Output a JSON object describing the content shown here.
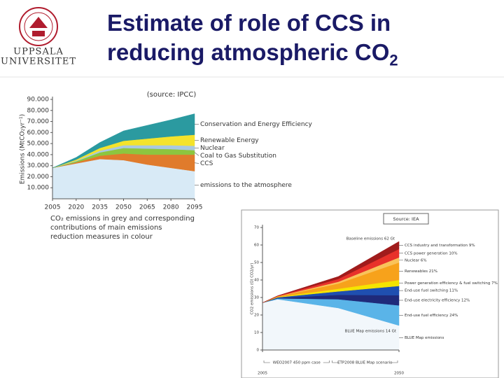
{
  "slide": {
    "title": [
      "Estimate of role of CCS in",
      "reducing atmospheric CO"
    ],
    "title_subscript": "2",
    "logo": [
      "UPPSALA",
      "UNIVERSITET"
    ]
  },
  "chart_data": [
    {
      "type": "stacked_area",
      "source": "(source: IPCC)",
      "y_label": "Emissions (MtCO₂yr⁻¹)",
      "caption": "CO₂ emissions in grey and corresponding contributions of main emissions reduction measures in colour",
      "x": [
        2005,
        2020,
        2035,
        2050,
        2065,
        2080,
        2095
      ],
      "series": [
        {
          "name": "emissions to the atmosphere",
          "color": "#d8eaf6",
          "values": [
            28000,
            32000,
            36000,
            35000,
            31000,
            28000,
            25000
          ]
        },
        {
          "name": "CCS",
          "color": "#e07b2c",
          "values": [
            0,
            1000,
            3000,
            6000,
            9000,
            12000,
            15000
          ]
        },
        {
          "name": "Coal to Gas Substitution",
          "color": "#8dc63f",
          "values": [
            0,
            1000,
            3000,
            5000,
            5500,
            5000,
            4000
          ]
        },
        {
          "name": "Nuclear",
          "color": "#a9c9e0",
          "values": [
            0,
            500,
            1500,
            2500,
            3000,
            3500,
            4000
          ]
        },
        {
          "name": "Renewable Energy",
          "color": "#f4e32c",
          "values": [
            0,
            1000,
            2500,
            4000,
            6000,
            8000,
            10000
          ]
        },
        {
          "name": "Conservation and Energy Efficiency",
          "color": "#2b9aa0",
          "values": [
            0,
            2000,
            5000,
            9000,
            12000,
            15000,
            19000
          ]
        }
      ],
      "xlim": [
        2005,
        2095
      ],
      "xticks": [
        2005,
        2020,
        2035,
        2050,
        2065,
        2080,
        2095
      ],
      "ylim": [
        0,
        90000
      ],
      "yticks": [
        {
          "value": 10000,
          "label": "10.000"
        },
        {
          "value": 20000,
          "label": "20.000"
        },
        {
          "value": 30000,
          "label": "30.000"
        },
        {
          "value": 40000,
          "label": "40.000"
        },
        {
          "value": 50000,
          "label": "50.000"
        },
        {
          "value": 60000,
          "label": "60.000"
        },
        {
          "value": 70000,
          "label": "70.000"
        },
        {
          "value": 80000,
          "label": "80.000"
        },
        {
          "value": 90000,
          "label": "90.000"
        }
      ]
    },
    {
      "type": "stacked_area",
      "source": "Source: IEA",
      "y_label": "CO2 emissions (Gt CO2/yr)",
      "top_label": "Baseline emissions 62 Gt",
      "bottom_label": "BLUE Map emissions 14 Gt",
      "scenarios": [
        "WEO2007 450 ppm case",
        "ETP2008 BLUE Map scenario"
      ],
      "x": [
        2005,
        2010,
        2030,
        2050
      ],
      "series": [
        {
          "name": "BLUE Map emissions",
          "color": "#f2f7fb",
          "values": [
            27,
            29,
            24,
            14
          ]
        },
        {
          "name": "End-use fuel efficiency 24%",
          "color": "#5ab4e8",
          "values": [
            0,
            0.5,
            5,
            11.5
          ]
        },
        {
          "name": "End-use electricity efficiency 12%",
          "color": "#1f2a7a",
          "values": [
            0,
            0.3,
            2.5,
            5.8
          ]
        },
        {
          "name": "End-use fuel switching 11%",
          "color": "#1f4fb0",
          "values": [
            0,
            0.3,
            2,
            5.3
          ]
        },
        {
          "name": "Power generation efficiency & fuel switching 7%",
          "color": "#f5e400",
          "values": [
            0,
            0.2,
            1.5,
            3.4
          ]
        },
        {
          "name": "Renewables 21%",
          "color": "#f7a21b",
          "values": [
            0,
            0.3,
            3,
            10
          ]
        },
        {
          "name": "Nuclear 6%",
          "color": "#f9c35a",
          "values": [
            0,
            0.1,
            1,
            2.9
          ]
        },
        {
          "name": "CCS power generation 10%",
          "color": "#e8312a",
          "values": [
            0,
            0.2,
            1.6,
            4.8
          ]
        },
        {
          "name": "CCS industry and transformation 9%",
          "color": "#a01c1c",
          "values": [
            0,
            0.1,
            1.4,
            4.3
          ]
        }
      ],
      "xlim": [
        2005,
        2050
      ],
      "xticks": [
        2005,
        2050
      ],
      "ylim": [
        0,
        70
      ],
      "yticks": [
        0,
        10,
        20,
        30,
        40,
        50,
        60,
        70
      ]
    }
  ]
}
